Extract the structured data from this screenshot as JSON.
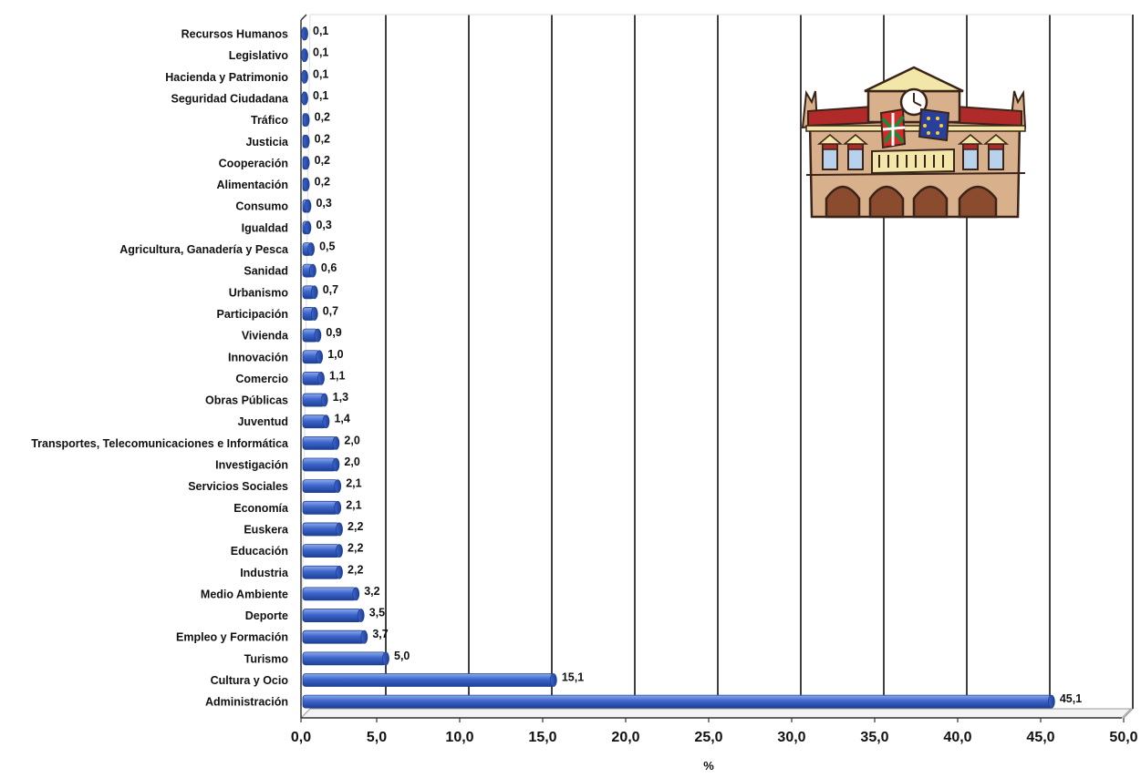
{
  "chart_data": {
    "type": "bar",
    "orientation": "horizontal",
    "categories": [
      "Recursos Humanos",
      "Legislativo",
      "Hacienda y Patrimonio",
      "Seguridad Ciudadana",
      "Tráfico",
      "Justicia",
      "Cooperación",
      "Alimentación",
      "Consumo",
      "Igualdad",
      "Agricultura, Ganadería y Pesca",
      "Sanidad",
      "Urbanismo",
      "Participación",
      "Vivienda",
      "Innovación",
      "Comercio",
      "Obras Públicas",
      "Juventud",
      "Transportes, Telecomunicaciones e Informática",
      "Investigación",
      "Servicios Sociales",
      "Economía",
      "Euskera",
      "Educación",
      "Industria",
      "Medio Ambiente",
      "Deporte",
      "Empleo y Formación",
      "Turismo",
      "Cultura y Ocio",
      "Administración"
    ],
    "values": [
      0.1,
      0.1,
      0.1,
      0.1,
      0.2,
      0.2,
      0.2,
      0.2,
      0.3,
      0.3,
      0.5,
      0.6,
      0.7,
      0.7,
      0.9,
      1.0,
      1.1,
      1.3,
      1.4,
      2.0,
      2.0,
      2.1,
      2.1,
      2.2,
      2.2,
      2.2,
      3.2,
      3.5,
      3.7,
      5.0,
      15.1,
      45.1
    ],
    "value_labels": [
      "0,1",
      "0,1",
      "0,1",
      "0,1",
      "0,2",
      "0,2",
      "0,2",
      "0,2",
      "0,3",
      "0,3",
      "0,5",
      "0,6",
      "0,7",
      "0,7",
      "0,9",
      "1,0",
      "1,1",
      "1,3",
      "1,4",
      "2,0",
      "2,0",
      "2,1",
      "2,1",
      "2,2",
      "2,2",
      "2,2",
      "3,2",
      "3,5",
      "3,7",
      "5,0",
      "15,1",
      "45,1"
    ],
    "xlim": [
      0,
      50
    ],
    "xticks": [
      0,
      5,
      10,
      15,
      20,
      25,
      30,
      35,
      40,
      45,
      50
    ],
    "xtick_labels": [
      "0,0",
      "5,0",
      "10,0",
      "15,0",
      "20,0",
      "25,0",
      "30,0",
      "35,0",
      "40,0",
      "45,0",
      "50,0"
    ],
    "xlabel": "%",
    "ylabel": "",
    "title": "",
    "grid": "vertical",
    "legend": "none",
    "colors": {
      "bar": "#3d66cc",
      "bar_dark": "#1e3f94",
      "bar_light": "#8eaaea",
      "gridline": "#111111",
      "axis": "#333333"
    }
  },
  "illustration": {
    "name": "town-hall-illustration",
    "colors": {
      "wall": "#d9b08c",
      "roof": "#b02a2a",
      "trim": "#f2e7a8",
      "window": "#b8d2ee",
      "arch": "#8a4b2e",
      "basque_flag_red": "#d42a2a",
      "basque_flag_green": "#1a8a3a",
      "eu_flag": "#2a3f9c"
    }
  }
}
